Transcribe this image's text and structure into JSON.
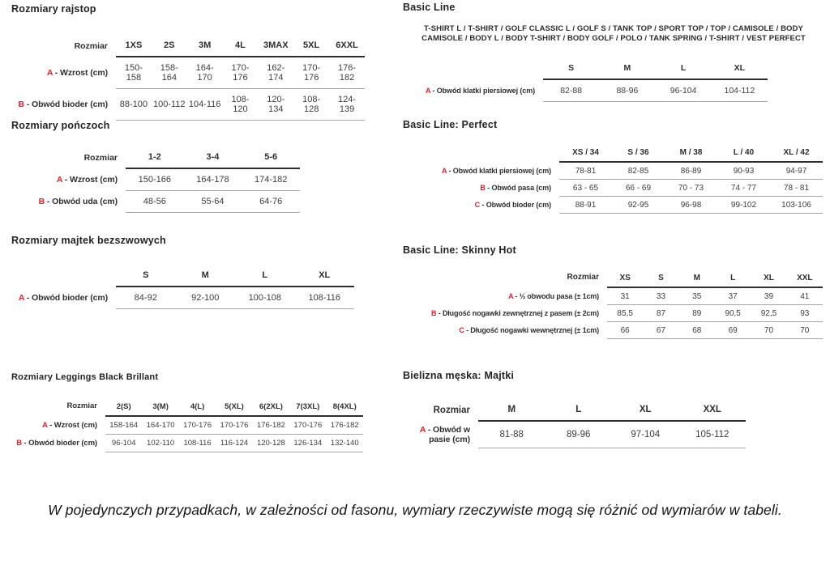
{
  "colors": {
    "accent_red": "#d8232a",
    "text": "#3a3a3a",
    "rule_dark": "#2d2d2d",
    "rule_light": "#a6a6a6"
  },
  "footer_note": "W pojedynczych przypadkach, w zależności od fasonu, wymiary rzeczywiste mogą się różnić od wymiarów w tabeli.",
  "tables": [
    {
      "title": "Rozmiary rajstop",
      "corner": "Rozmiar",
      "columns": [
        "1XS",
        "2S",
        "3M",
        "4L",
        "3MAX",
        "5XL",
        "6XXL"
      ],
      "rows": [
        {
          "letter": "A",
          "label": "- Wzrost (cm)",
          "values": [
            "150-158",
            "158-164",
            "164-170",
            "170-176",
            "162-174",
            "170-176",
            "176-182"
          ]
        },
        {
          "letter": "B",
          "label": "- Obwód bioder (cm)",
          "values": [
            "88-100",
            "100-112",
            "104-116",
            "108-120",
            "120-134",
            "108-128",
            "124-139"
          ]
        }
      ]
    },
    {
      "title": "Rozmiary pończoch",
      "corner": "Rozmiar",
      "columns": [
        "1-2",
        "3-4",
        "5-6"
      ],
      "rows": [
        {
          "letter": "A",
          "label": "- Wzrost (cm)",
          "values": [
            "150-166",
            "164-178",
            "174-182"
          ]
        },
        {
          "letter": "B",
          "label": "- Obwód uda (cm)",
          "values": [
            "48-56",
            "55-64",
            "64-76"
          ]
        }
      ]
    },
    {
      "title": "Rozmiary majtek bezszwowych",
      "corner": "",
      "columns": [
        "S",
        "M",
        "L",
        "XL"
      ],
      "rows": [
        {
          "letter": "A",
          "label": "- Obwód bioder (cm)",
          "values": [
            "84-92",
            "92-100",
            "100-108",
            "108-116"
          ]
        }
      ]
    },
    {
      "title": "Rozmiary Leggings Black Brillant",
      "corner": "Rozmiar",
      "columns": [
        "2(S)",
        "3(M)",
        "4(L)",
        "5(XL)",
        "6(2XL)",
        "7(3XL)",
        "8(4XL)"
      ],
      "rows": [
        {
          "letter": "A",
          "label": "- Wzrost (cm)",
          "values": [
            "158-164",
            "164-170",
            "170-176",
            "170-176",
            "176-182",
            "170-176",
            "176-182"
          ]
        },
        {
          "letter": "B",
          "label": "- Obwód bioder (cm)",
          "values": [
            "96-104",
            "102-110",
            "108-116",
            "116-124",
            "120-128",
            "126-134",
            "132-140"
          ]
        }
      ]
    },
    {
      "title": "Basic Line",
      "subtitle": "T-SHIRT L / T-SHIRT / GOLF CLASSIC L / GOLF S / TANK TOP / SPORT TOP / TOP / CAMISOLE / BODY CAMISOLE / BODY L / BODY T-SHIRT / BODY GOLF / POLO / TANK SPRING / T-SHIRT / VEST PERFECT",
      "corner": "",
      "columns": [
        "S",
        "M",
        "L",
        "XL"
      ],
      "rows": [
        {
          "letter": "A",
          "label": "- Obwód klatki piersiowej (cm)",
          "values": [
            "82-88",
            "88-96",
            "96-104",
            "104-112"
          ]
        }
      ]
    },
    {
      "title": "Basic Line: Perfect",
      "corner": "",
      "columns": [
        "XS / 34",
        "S / 36",
        "M / 38",
        "L / 40",
        "XL / 42"
      ],
      "rows": [
        {
          "letter": "A",
          "label": "- Obwód klatki piersiowej (cm)",
          "values": [
            "78-81",
            "82-85",
            "86-89",
            "90-93",
            "94-97"
          ]
        },
        {
          "letter": "B",
          "label": "- Obwód pasa (cm)",
          "values": [
            "63 - 65",
            "66 - 69",
            "70 - 73",
            "74 - 77",
            "78 - 81"
          ]
        },
        {
          "letter": "C",
          "label": "- Obwód bioder (cm)",
          "values": [
            "88-91",
            "92-95",
            "96-98",
            "99-102",
            "103-106"
          ]
        }
      ]
    },
    {
      "title": "Basic Line: Skinny Hot",
      "corner": "Rozmiar",
      "columns": [
        "XS",
        "S",
        "M",
        "L",
        "XL",
        "XXL"
      ],
      "rows": [
        {
          "letter": "A",
          "label": "- ½ obwodu pasa (± 1cm)",
          "values": [
            "31",
            "33",
            "35",
            "37",
            "39",
            "41"
          ]
        },
        {
          "letter": "B",
          "label": "- Długość nogawki zewnętrznej z pasem (± 2cm)",
          "values": [
            "85,5",
            "87",
            "89",
            "90,5",
            "92,5",
            "93"
          ]
        },
        {
          "letter": "C",
          "label": "- Długość nogawki wewnętrznej (± 1cm)",
          "values": [
            "66",
            "67",
            "68",
            "69",
            "70",
            "70"
          ]
        }
      ]
    },
    {
      "title": "Bielizna męska: Majtki",
      "corner": "Rozmiar",
      "columns": [
        "M",
        "L",
        "XL",
        "XXL"
      ],
      "rows": [
        {
          "letter": "A",
          "label": "- Obwód w pasie (cm)",
          "values": [
            "81-88",
            "89-96",
            "97-104",
            "105-112"
          ]
        }
      ]
    }
  ]
}
